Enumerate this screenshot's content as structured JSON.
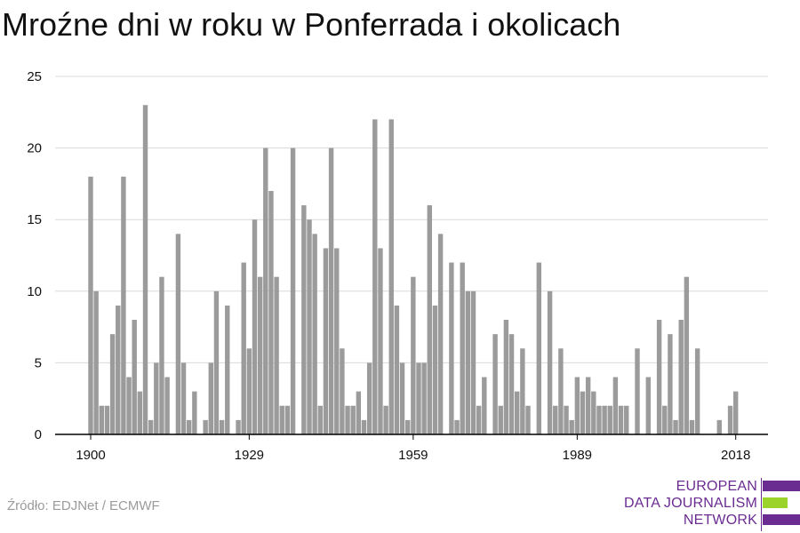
{
  "title": "Mroźne dni w roku w Ponferrada i okolicach",
  "source": "Źródło: EDJNet / ECMWF",
  "logo": {
    "lines": [
      "EUROPEAN",
      "DATA JOURNALISM",
      "NETWORK"
    ],
    "colors": [
      "#6a2c91",
      "#9bd32b",
      "#6a2c91"
    ]
  },
  "colors": {
    "bar": "#9b9b9b",
    "grid": "#d9d9d9",
    "axis": "#000000"
  },
  "chart_data": {
    "type": "bar",
    "xlabel": "",
    "ylabel": "",
    "ylim": [
      0,
      25
    ],
    "yticks": [
      0,
      5,
      10,
      15,
      20,
      25
    ],
    "xticks": [
      1900,
      1929,
      1959,
      1989,
      2018
    ],
    "grid": true,
    "x_start": 1900,
    "values": [
      18,
      10,
      2,
      2,
      7,
      9,
      18,
      4,
      8,
      3,
      23,
      1,
      5,
      11,
      4,
      0,
      14,
      5,
      1,
      3,
      0,
      1,
      5,
      10,
      1,
      9,
      0,
      1,
      12,
      6,
      15,
      11,
      20,
      17,
      11,
      2,
      2,
      20,
      0,
      16,
      15,
      14,
      2,
      13,
      20,
      13,
      6,
      2,
      2,
      3,
      1,
      5,
      22,
      13,
      2,
      22,
      9,
      5,
      1,
      11,
      5,
      5,
      16,
      9,
      14,
      0,
      12,
      1,
      12,
      10,
      10,
      2,
      4,
      0,
      7,
      2,
      8,
      7,
      3,
      6,
      2,
      0,
      12,
      0,
      10,
      2,
      6,
      2,
      1,
      4,
      3,
      4,
      3,
      2,
      2,
      2,
      4,
      2,
      2,
      0,
      6,
      0,
      4,
      0,
      8,
      2,
      7,
      1,
      8,
      11,
      1,
      6,
      0,
      0,
      0,
      1,
      0,
      2,
      3
    ]
  }
}
